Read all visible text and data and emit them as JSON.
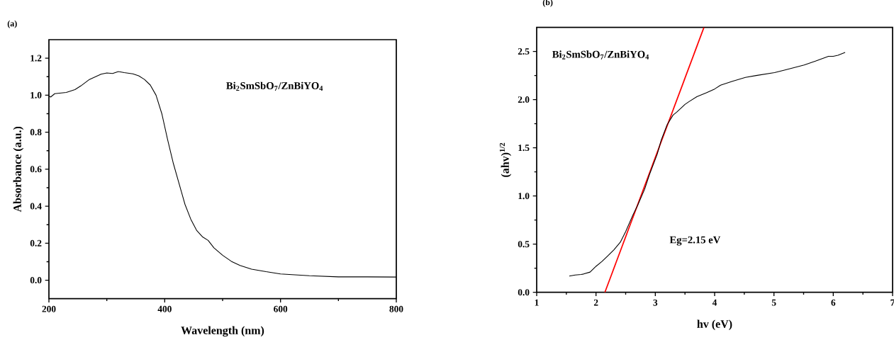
{
  "chart_data": [
    {
      "type": "line",
      "title": "(a)",
      "xlabel": "Wavelength (nm)",
      "ylabel": "Absorbance (a.u.)",
      "annotations": [
        "Bi$_{2}$SmSbO$_{7}$/ZnBiYO$_{4}$"
      ],
      "xlim": [
        200,
        800
      ],
      "ylim": [
        -0.1,
        1.3
      ],
      "xticks": [
        200,
        400,
        600,
        800
      ],
      "yticks": [
        {
          "value": 0,
          "label": "0.0"
        },
        {
          "value": 0.2,
          "label": "0.2"
        },
        {
          "value": 0.4,
          "label": "0.4"
        },
        {
          "value": 0.6,
          "label": "0.6"
        },
        {
          "value": 0.8,
          "label": "0.8"
        },
        {
          "value": 1.0,
          "label": "1.0"
        },
        {
          "value": 1.2,
          "label": "1.2"
        }
      ],
      "series": [
        {
          "color": "#000000",
          "x": [
            200,
            203,
            210,
            230,
            245,
            255,
            270,
            290,
            300,
            310,
            320,
            330,
            345,
            355,
            365,
            375,
            385,
            395,
            405,
            415,
            425,
            435,
            445,
            455,
            465,
            475,
            485,
            500,
            515,
            530,
            550,
            575,
            600,
            650,
            700,
            750,
            800
          ],
          "values": [
            0.995,
            0.99,
            1.008,
            1.015,
            1.03,
            1.05,
            1.085,
            1.113,
            1.12,
            1.117,
            1.128,
            1.122,
            1.115,
            1.105,
            1.085,
            1.055,
            1.0,
            0.9,
            0.76,
            0.63,
            0.52,
            0.41,
            0.33,
            0.27,
            0.235,
            0.215,
            0.175,
            0.135,
            0.102,
            0.08,
            0.06,
            0.046,
            0.034,
            0.024,
            0.018,
            0.018,
            0.017
          ]
        }
      ]
    },
    {
      "type": "line",
      "title": "(b)",
      "xlabel": "hv (eV)",
      "ylabel": "(ahv)$^{1/2}$",
      "annotations": [
        "Bi$_{2}$SmSbO$_{7}$/ZnBiYO$_{4}$",
        "Eg=2.15 eV"
      ],
      "xlim": [
        1,
        7
      ],
      "ylim": [
        0,
        2.75
      ],
      "xticks": [
        1,
        2,
        3,
        4,
        5,
        6,
        7
      ],
      "yticks": [
        {
          "value": 0,
          "label": "0.0"
        },
        {
          "value": 0.5,
          "label": "0.5"
        },
        {
          "value": 1.0,
          "label": "1.0"
        },
        {
          "value": 1.5,
          "label": "1.5"
        },
        {
          "value": 2.0,
          "label": "2.0"
        },
        {
          "value": 2.5,
          "label": "2.5"
        }
      ],
      "series": [
        {
          "color": "#ff0000",
          "x": [
            2.15,
            3.82
          ],
          "values": [
            0,
            2.75
          ]
        },
        {
          "color": "#000000",
          "x": [
            1.55,
            1.65,
            1.75,
            1.79,
            1.9,
            2.0,
            2.1,
            2.2,
            2.3,
            2.41,
            2.5,
            2.62,
            2.7,
            2.82,
            2.9,
            3.03,
            3.1,
            3.2,
            3.3,
            3.36,
            3.5,
            3.57,
            3.7,
            3.86,
            4.0,
            4.1,
            4.3,
            4.52,
            4.7,
            5.01,
            5.2,
            5.51,
            5.7,
            5.92,
            6.0,
            6.08,
            6.2
          ],
          "values": [
            0.168,
            0.18,
            0.185,
            0.19,
            0.21,
            0.27,
            0.32,
            0.38,
            0.44,
            0.52,
            0.63,
            0.8,
            0.9,
            1.07,
            1.22,
            1.43,
            1.58,
            1.74,
            1.84,
            1.87,
            1.95,
            1.98,
            2.03,
            2.07,
            2.11,
            2.15,
            2.19,
            2.23,
            2.25,
            2.28,
            2.31,
            2.36,
            2.4,
            2.45,
            2.45,
            2.46,
            2.49
          ]
        }
      ]
    }
  ]
}
